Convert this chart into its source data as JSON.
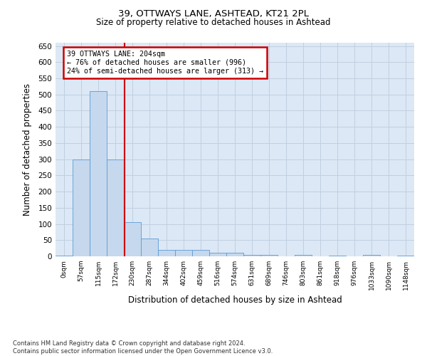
{
  "title1": "39, OTTWAYS LANE, ASHTEAD, KT21 2PL",
  "title2": "Size of property relative to detached houses in Ashtead",
  "xlabel": "Distribution of detached houses by size in Ashtead",
  "ylabel": "Number of detached properties",
  "footnote": "Contains HM Land Registry data © Crown copyright and database right 2024.\nContains public sector information licensed under the Open Government Licence v3.0.",
  "bin_labels": [
    "0sqm",
    "57sqm",
    "115sqm",
    "172sqm",
    "230sqm",
    "287sqm",
    "344sqm",
    "402sqm",
    "459sqm",
    "516sqm",
    "574sqm",
    "631sqm",
    "689sqm",
    "746sqm",
    "803sqm",
    "861sqm",
    "918sqm",
    "976sqm",
    "1033sqm",
    "1090sqm",
    "1148sqm"
  ],
  "bar_values": [
    2,
    300,
    510,
    300,
    105,
    55,
    20,
    20,
    20,
    10,
    10,
    5,
    5,
    0,
    4,
    0,
    3,
    0,
    4,
    0,
    3
  ],
  "bar_color": "#c5d8ed",
  "bar_edge_color": "#5b9bd5",
  "vline_color": "#cc0000",
  "annotation_text": "39 OTTWAYS LANE: 204sqm\n← 76% of detached houses are smaller (996)\n24% of semi-detached houses are larger (313) →",
  "annotation_box_color": "#cc0000",
  "ylim": [
    0,
    660
  ],
  "yticks": [
    0,
    50,
    100,
    150,
    200,
    250,
    300,
    350,
    400,
    450,
    500,
    550,
    600,
    650
  ],
  "plot_bg_color": "#dce8f5",
  "background_color": "#ffffff",
  "grid_color": "#c0cfe0"
}
